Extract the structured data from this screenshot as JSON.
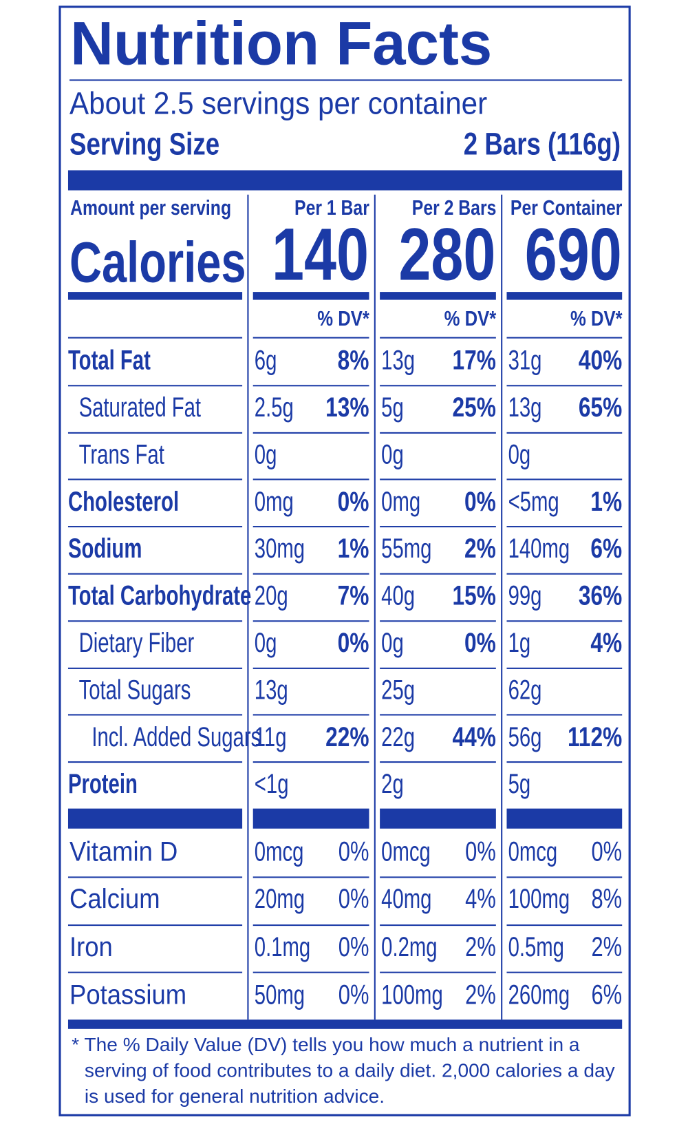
{
  "title": "Nutrition Facts",
  "servings": "About 2.5 servings per container",
  "serving_size": {
    "label": "Serving Size",
    "value": "2 Bars (116g)"
  },
  "amount_label": "Amount per serving",
  "calories_label": "Calories",
  "columns": [
    {
      "header": "Per 1 Bar",
      "calories": "140",
      "dv_header": "% DV*"
    },
    {
      "header": "Per 2 Bars",
      "calories": "280",
      "dv_header": "% DV*"
    },
    {
      "header": "Per Container",
      "calories": "690",
      "dv_header": "% DV*"
    }
  ],
  "nutrients": [
    {
      "name": "Total Fat",
      "indent": 0,
      "values": [
        [
          "6g",
          "8%"
        ],
        [
          "13g",
          "17%"
        ],
        [
          "31g",
          "40%"
        ]
      ]
    },
    {
      "name": "Saturated Fat",
      "indent": 1,
      "values": [
        [
          "2.5g",
          "13%"
        ],
        [
          "5g",
          "25%"
        ],
        [
          "13g",
          "65%"
        ]
      ]
    },
    {
      "name": "Trans Fat",
      "indent": 1,
      "values": [
        [
          "0g",
          null
        ],
        [
          "0g",
          null
        ],
        [
          "0g",
          null
        ]
      ]
    },
    {
      "name": "Cholesterol",
      "indent": 0,
      "values": [
        [
          "0mg",
          "0%"
        ],
        [
          "0mg",
          "0%"
        ],
        [
          "<5mg",
          "1%"
        ]
      ]
    },
    {
      "name": "Sodium",
      "indent": 0,
      "values": [
        [
          "30mg",
          "1%"
        ],
        [
          "55mg",
          "2%"
        ],
        [
          "140mg",
          "6%"
        ]
      ]
    },
    {
      "name": "Total Carbohydrate",
      "indent": 0,
      "values": [
        [
          "20g",
          "7%"
        ],
        [
          "40g",
          "15%"
        ],
        [
          "99g",
          "36%"
        ]
      ]
    },
    {
      "name": "Dietary Fiber",
      "indent": 1,
      "values": [
        [
          "0g",
          "0%"
        ],
        [
          "0g",
          "0%"
        ],
        [
          "1g",
          "4%"
        ]
      ]
    },
    {
      "name": "Total Sugars",
      "indent": 1,
      "values": [
        [
          "13g",
          null
        ],
        [
          "25g",
          null
        ],
        [
          "62g",
          null
        ]
      ]
    },
    {
      "name": "Incl. Added Sugars",
      "indent": 2,
      "values": [
        [
          "11g",
          "22%"
        ],
        [
          "22g",
          "44%"
        ],
        [
          "56g",
          "112%"
        ]
      ]
    },
    {
      "name": "Protein",
      "indent": 0,
      "values": [
        [
          "<1g",
          null
        ],
        [
          "2g",
          null
        ],
        [
          "5g",
          null
        ]
      ]
    }
  ],
  "vitamins": [
    {
      "name": "Vitamin D",
      "values": [
        [
          "0mcg",
          "0%"
        ],
        [
          "0mcg",
          "0%"
        ],
        [
          "0mcg",
          "0%"
        ]
      ]
    },
    {
      "name": "Calcium",
      "values": [
        [
          "20mg",
          "0%"
        ],
        [
          "40mg",
          "4%"
        ],
        [
          "100mg",
          "8%"
        ]
      ]
    },
    {
      "name": "Iron",
      "values": [
        [
          "0.1mg",
          "0%"
        ],
        [
          "0.2mg",
          "2%"
        ],
        [
          "0.5mg",
          "2%"
        ]
      ]
    },
    {
      "name": "Potassium",
      "values": [
        [
          "50mg",
          "0%"
        ],
        [
          "100mg",
          "2%"
        ],
        [
          "260mg",
          "6%"
        ]
      ]
    }
  ],
  "footnote": "* The % Daily Value (DV) tells you how much a nutrient in a serving of food contributes to a daily diet. 2,000 calories a day is used for general nutrition advice."
}
